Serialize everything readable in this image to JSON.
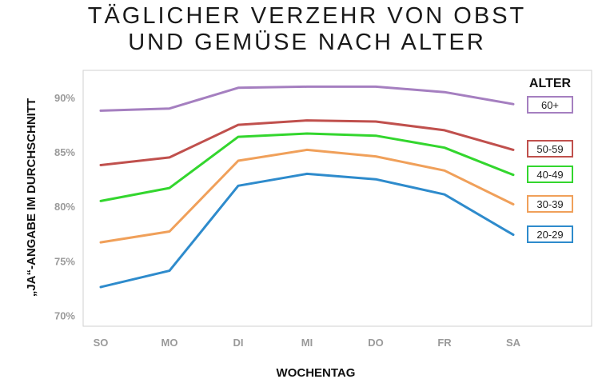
{
  "chart_data": {
    "type": "line",
    "title_lines": [
      "TÄGLICHER VERZEHR VON OBST",
      "UND GEMÜSE NACH ALTER"
    ],
    "xlabel": "WOCHENTAG",
    "ylabel": "„JA“-ANGABE IM DURCHSCHNITT",
    "categories": [
      "SO",
      "MO",
      "DI",
      "MI",
      "DO",
      "FR",
      "SA"
    ],
    "ylim": [
      69,
      92.5
    ],
    "yticks": [
      "70%",
      "75%",
      "80%",
      "85%",
      "90%"
    ],
    "ytick_values": [
      70,
      75,
      80,
      85,
      90
    ],
    "legend_title": "ALTER",
    "legend_position": "right",
    "series": [
      {
        "name": "60+",
        "color": "#a57fc0",
        "values": [
          88.8,
          89.0,
          90.9,
          91.0,
          91.0,
          90.5,
          89.4
        ]
      },
      {
        "name": "50-59",
        "color": "#c0504d",
        "values": [
          83.8,
          84.5,
          87.5,
          87.9,
          87.8,
          87.0,
          85.2
        ]
      },
      {
        "name": "40-49",
        "color": "#33d62e",
        "values": [
          80.5,
          81.7,
          86.4,
          86.7,
          86.5,
          85.4,
          82.9
        ]
      },
      {
        "name": "30-39",
        "color": "#f0a05a",
        "values": [
          76.7,
          77.7,
          84.2,
          85.2,
          84.6,
          83.3,
          80.2
        ]
      },
      {
        "name": "20-29",
        "color": "#2e8bcc",
        "values": [
          72.6,
          74.1,
          81.9,
          83.0,
          82.5,
          81.1,
          77.4
        ]
      }
    ]
  }
}
